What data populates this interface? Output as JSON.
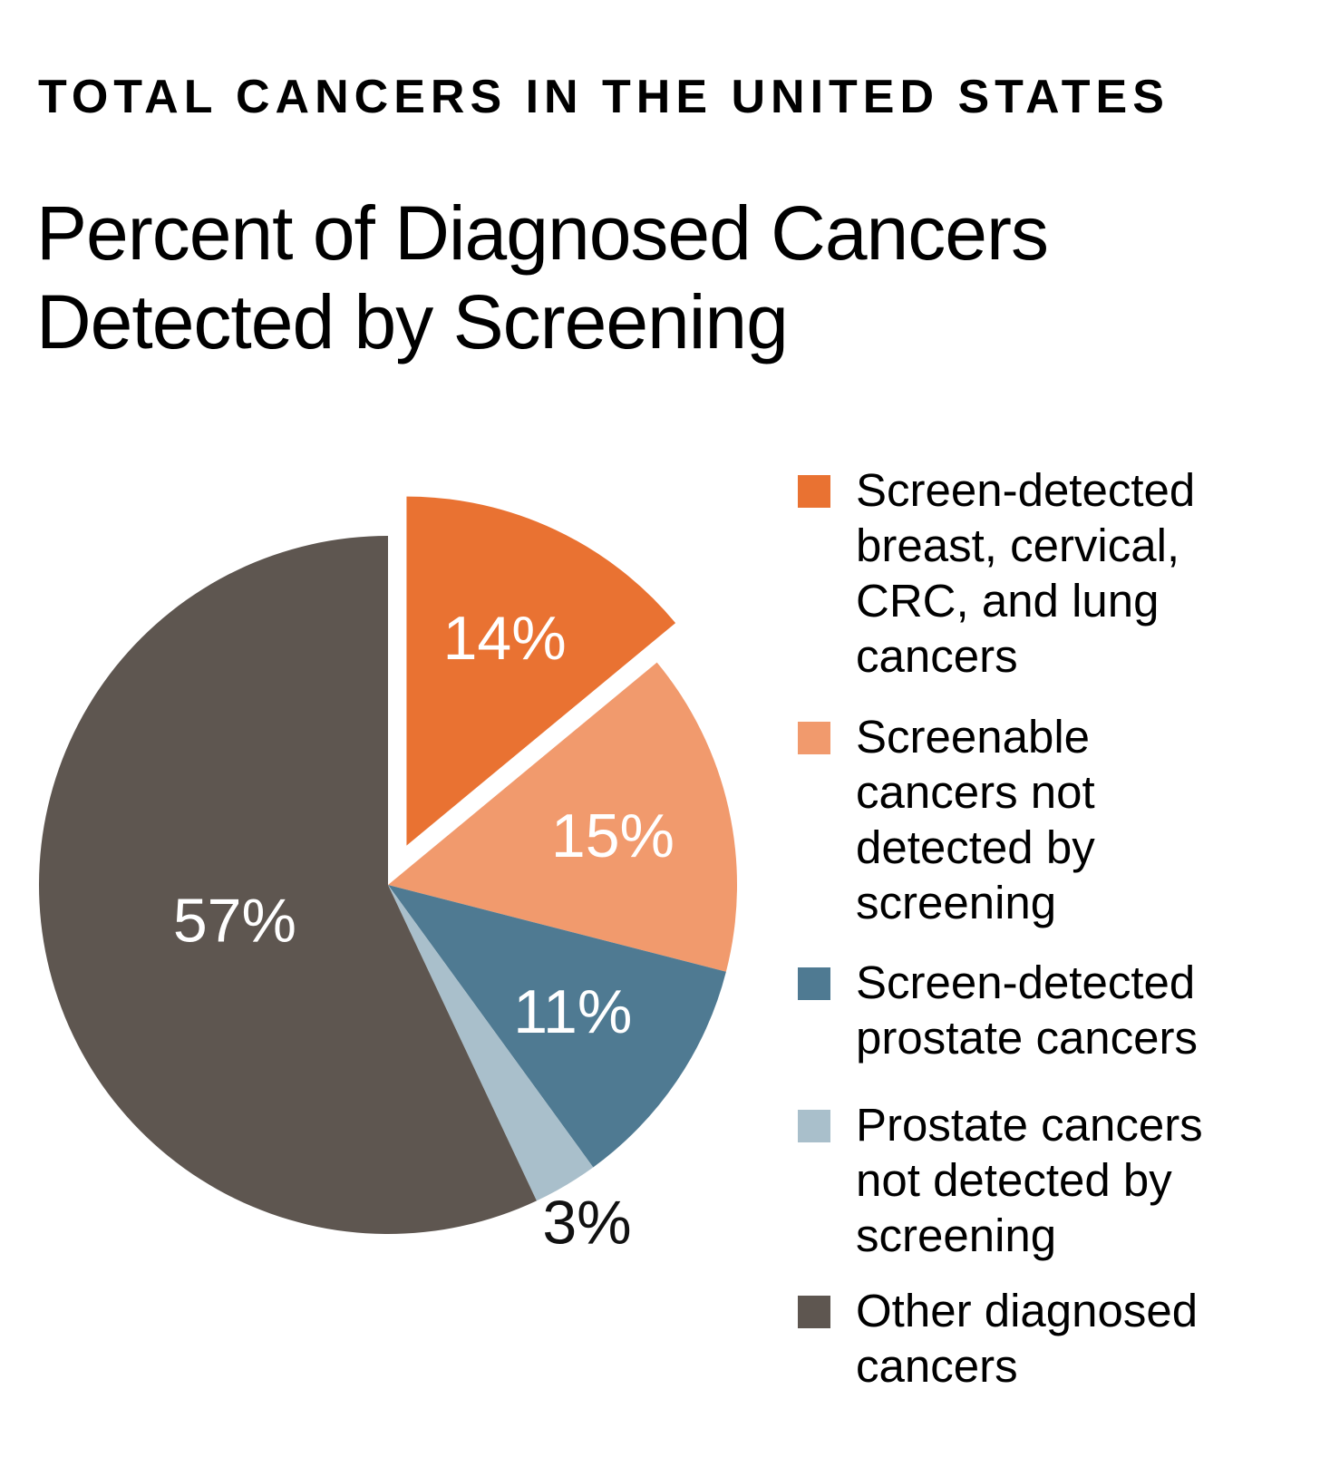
{
  "header": {
    "kicker": "TOTAL CANCERS IN THE UNITED STATES",
    "title_line1": "Percent of Diagnosed Cancers",
    "title_line2": "Detected by Screening"
  },
  "chart_data": {
    "type": "pie",
    "unit": "%",
    "exploded_slice": 0,
    "slices": [
      {
        "label": "Screen-detected breast, cervical, CRC, and lung cancers",
        "value": 14,
        "display": "14%",
        "color": "#e97232"
      },
      {
        "label": "Screenable cancers not detected by screening",
        "value": 15,
        "display": "15%",
        "color": "#f19a6d"
      },
      {
        "label": "Screen-detected prostate cancers",
        "value": 11,
        "display": "11%",
        "color": "#4f7a92"
      },
      {
        "label": "Prostate cancers not detected by screening",
        "value": 3,
        "display": "3%",
        "color": "#a9bfcb"
      },
      {
        "label": "Other diagnosed cancers",
        "value": 57,
        "display": "57%",
        "color": "#5e5650"
      }
    ],
    "legend_position": "right"
  },
  "legend": {
    "items": [
      {
        "text": "Screen-detected\nbreast, cervical,\nCRC, and lung\ncancers",
        "color": "#e97232"
      },
      {
        "text": "Screenable\ncancers not\ndetected by\nscreening",
        "color": "#f19a6d"
      },
      {
        "text": "Screen-detected\nprostate cancers",
        "color": "#4f7a92"
      },
      {
        "text": "Prostate cancers\nnot detected by\nscreening",
        "color": "#a9bfcb"
      },
      {
        "text": "Other diagnosed\ncancers",
        "color": "#5e5650"
      }
    ]
  }
}
